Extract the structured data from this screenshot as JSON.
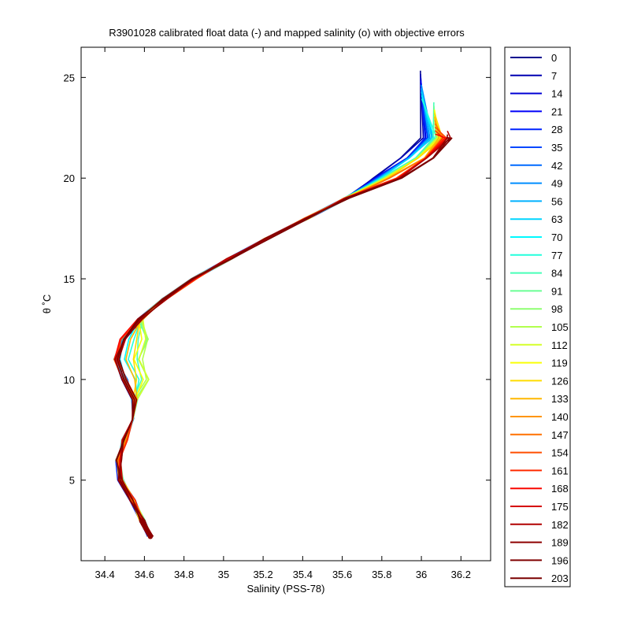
{
  "chart_data": {
    "type": "line",
    "title": "R3901028 calibrated float data (-) and mapped salinity (o) with objective errors",
    "xlabel": "Salinity (PSS-78)",
    "ylabel": "θ ˚C",
    "xlim": [
      34.28,
      36.35
    ],
    "ylim": [
      1.0,
      26.5
    ],
    "xticks": [
      34.4,
      34.6,
      34.8,
      35.0,
      35.2,
      35.4,
      35.6,
      35.8,
      36.0,
      36.2
    ],
    "xtick_labels": [
      "34.4",
      "34.6",
      "34.8",
      "35",
      "35.2",
      "35.4",
      "35.6",
      "35.8",
      "36",
      "36.2"
    ],
    "yticks": [
      5,
      10,
      15,
      20,
      25
    ],
    "ytick_labels": [
      "5",
      "10",
      "15",
      "20",
      "25"
    ],
    "grid": false,
    "legend": "right-outside",
    "colormap": "jet",
    "series": [
      {
        "name": "0",
        "color": "#00008f"
      },
      {
        "name": "7",
        "color": "#0000b2"
      },
      {
        "name": "14",
        "color": "#0000d5"
      },
      {
        "name": "21",
        "color": "#0000f9"
      },
      {
        "name": "28",
        "color": "#0023ff"
      },
      {
        "name": "35",
        "color": "#0047ff"
      },
      {
        "name": "42",
        "color": "#006aff"
      },
      {
        "name": "49",
        "color": "#008eff"
      },
      {
        "name": "56",
        "color": "#00b1ff"
      },
      {
        "name": "63",
        "color": "#00d5ff"
      },
      {
        "name": "70",
        "color": "#00f9ff"
      },
      {
        "name": "77",
        "color": "#23ffdc"
      },
      {
        "name": "84",
        "color": "#47ffb8"
      },
      {
        "name": "91",
        "color": "#6aff95"
      },
      {
        "name": "98",
        "color": "#8eff71"
      },
      {
        "name": "105",
        "color": "#b1ff4e"
      },
      {
        "name": "112",
        "color": "#d5ff2a"
      },
      {
        "name": "119",
        "color": "#f9ff07"
      },
      {
        "name": "126",
        "color": "#ffdc00"
      },
      {
        "name": "133",
        "color": "#ffb800"
      },
      {
        "name": "140",
        "color": "#ff9500"
      },
      {
        "name": "147",
        "color": "#ff7100"
      },
      {
        "name": "154",
        "color": "#ff4e00"
      },
      {
        "name": "161",
        "color": "#ff2a00"
      },
      {
        "name": "168",
        "color": "#f90700"
      },
      {
        "name": "175",
        "color": "#d50000"
      },
      {
        "name": "182",
        "color": "#b10000"
      },
      {
        "name": "189",
        "color": "#8e0000"
      },
      {
        "name": "196",
        "color": "#800000"
      },
      {
        "name": "203",
        "color": "#7a0000"
      }
    ],
    "profile_shape": {
      "description_free_points": true,
      "theta": [
        2.2,
        3.0,
        4.0,
        5.0,
        6.0,
        7.0,
        8.0,
        9.0,
        10.0,
        11.0,
        12.0,
        13.0,
        14.0,
        15.0,
        16.0,
        17.0,
        18.0,
        19.0,
        20.0,
        21.0,
        22.0
      ],
      "salinity": [
        34.63,
        34.59,
        34.54,
        34.48,
        34.47,
        34.5,
        34.53,
        34.55,
        34.5,
        34.46,
        34.49,
        34.58,
        34.7,
        34.85,
        35.03,
        35.22,
        35.42,
        35.62,
        35.82,
        35.98,
        36.08
      ]
    }
  }
}
